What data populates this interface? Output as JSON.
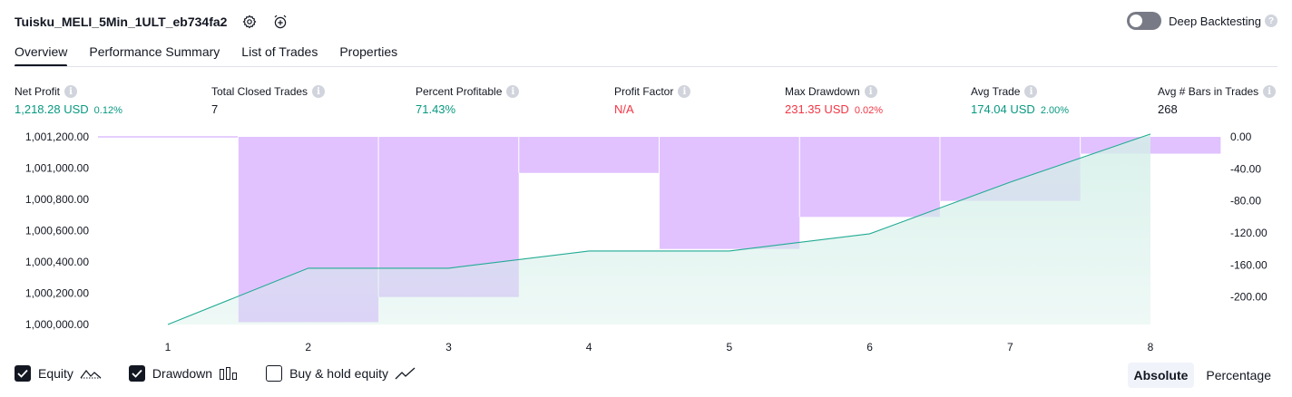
{
  "header": {
    "strategy_name": "Tuisku_MELI_5Min_1ULT_eb734fa2",
    "settings_icon": "settings-gear-icon",
    "alert_icon": "add-alert-clock-icon"
  },
  "deep_backtesting": {
    "label": "Deep Backtesting",
    "enabled": false,
    "help": "?"
  },
  "tabs": [
    {
      "label": "Overview",
      "active": true
    },
    {
      "label": "Performance Summary",
      "active": false
    },
    {
      "label": "List of Trades",
      "active": false
    },
    {
      "label": "Properties",
      "active": false
    }
  ],
  "metrics": {
    "net_profit": {
      "label": "Net Profit",
      "value": "1,218.28 USD",
      "pct": "0.12%"
    },
    "total_closed_trades": {
      "label": "Total Closed Trades",
      "value": "7"
    },
    "percent_profitable": {
      "label": "Percent Profitable",
      "value": "71.43%"
    },
    "profit_factor": {
      "label": "Profit Factor",
      "value": "N/A"
    },
    "max_drawdown": {
      "label": "Max Drawdown",
      "value": "231.35 USD",
      "pct": "0.02%"
    },
    "avg_trade": {
      "label": "Avg Trade",
      "value": "174.04 USD",
      "pct": "2.00%"
    },
    "avg_bars": {
      "label": "Avg # Bars in Trades",
      "value": "268"
    }
  },
  "colors": {
    "green": "#089981",
    "red": "#f23645",
    "equity_line": "#22ab94",
    "equity_fill": "#d4efe8",
    "drawdown_fill": "#ce9cff"
  },
  "chart_data": {
    "type": "area",
    "x": [
      1,
      2,
      3,
      4,
      5,
      6,
      7,
      8
    ],
    "x_tick_labels": [
      "1",
      "2",
      "3",
      "4",
      "5",
      "6",
      "7",
      "8"
    ],
    "left_ylim": [
      1000000,
      1001200
    ],
    "left_ticks": [
      "1,001,200.00",
      "1,001,000.00",
      "1,000,800.00",
      "1,000,600.00",
      "1,000,400.00",
      "1,000,200.00",
      "1,000,000.00"
    ],
    "left_tick_values": [
      1001200,
      1001000,
      1000800,
      1000600,
      1000400,
      1000200,
      1000000
    ],
    "right_ylim": [
      -240,
      0
    ],
    "right_ticks": [
      "0.00",
      "-40.00",
      "-80.00",
      "-120.00",
      "-160.00",
      "-200.00"
    ],
    "right_tick_values": [
      0,
      -40,
      -80,
      -120,
      -160,
      -200
    ],
    "series": [
      {
        "name": "Equity",
        "type": "area",
        "axis": "left",
        "values": [
          1000000,
          1000360,
          1000360,
          1000470,
          1000470,
          1000580,
          1000910,
          1001218.28
        ]
      },
      {
        "name": "Drawdown",
        "type": "bar",
        "axis": "right",
        "bins": [
          {
            "from": 0.5,
            "to": 1.5,
            "value": 0
          },
          {
            "from": 1.5,
            "to": 2.5,
            "value": -231.35
          },
          {
            "from": 2.5,
            "to": 3.5,
            "value": -200
          },
          {
            "from": 3.5,
            "to": 4.5,
            "value": -45
          },
          {
            "from": 4.5,
            "to": 5.5,
            "value": -140
          },
          {
            "from": 5.5,
            "to": 6.5,
            "value": -100
          },
          {
            "from": 6.5,
            "to": 7.5,
            "value": -80
          },
          {
            "from": 7.5,
            "to": 8.5,
            "value": -21
          }
        ]
      }
    ]
  },
  "legend": {
    "equity": {
      "label": "Equity",
      "checked": true,
      "icon": "equity-line-icon"
    },
    "drawdown": {
      "label": "Drawdown",
      "checked": true,
      "icon": "drawdown-bars-icon"
    },
    "buy_hold": {
      "label": "Buy & hold equity",
      "checked": false,
      "icon": "buy-hold-line-icon"
    }
  },
  "view_mode": {
    "absolute": "Absolute",
    "percentage": "Percentage",
    "selected": "absolute"
  }
}
